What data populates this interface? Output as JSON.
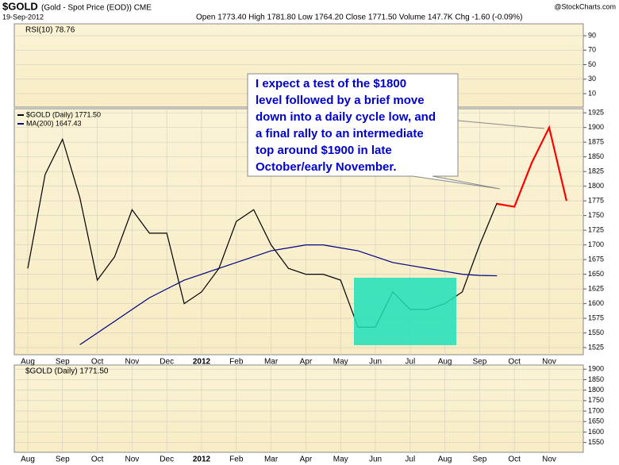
{
  "header": {
    "symbol": "$GOLD",
    "description": "(Gold - Spot Price (EOD)) CME",
    "date": "19-Sep-2012",
    "stats": "Open 1773.40 High 1781.80 Low 1764.20 Close 1771.50 Volume 147.7K Chg -1.60 (-0.09%)",
    "watermark": "@StockCharts.com"
  },
  "chart_data": [
    {
      "type": "line",
      "title": "RSI(10) 78.76",
      "ylim": [
        -8.6,
        106.4
      ],
      "yticks": [
        90,
        70,
        50,
        30,
        10
      ],
      "grid": true
    },
    {
      "type": "line",
      "categories": [
        "Aug",
        null,
        "Sep",
        null,
        "Oct",
        null,
        "Nov",
        null,
        "Dec",
        null,
        "2012",
        null,
        "Feb",
        null,
        "Mar",
        null,
        "Apr",
        null,
        "May",
        null,
        "Jun",
        null,
        "Jul",
        null,
        "Aug",
        null,
        "Sep",
        null,
        "Oct",
        null,
        "Nov",
        null
      ],
      "series": [
        {
          "name": "$GOLD (Daily) 1771.50",
          "color": "#000000",
          "values": [
            1660,
            1820,
            1880,
            1780,
            1640,
            1680,
            1760,
            1720,
            1720,
            1600,
            1620,
            1660,
            1740,
            1760,
            1700,
            1660,
            1650,
            1650,
            1640,
            1560,
            1560,
            1620,
            1590,
            1590,
            1600,
            1620,
            1700,
            1771.5,
            null,
            null,
            null,
            null
          ]
        },
        {
          "name": "MA(200) 1647.43",
          "color": "#000080",
          "values": [
            null,
            null,
            null,
            1530,
            1550,
            1570,
            1590,
            1610,
            1625,
            1640,
            1650,
            1660,
            1670,
            1680,
            1690,
            1695,
            1700,
            1700,
            1695,
            1690,
            1680,
            1670,
            1665,
            1660,
            1655,
            1650,
            1648,
            1647.43,
            null,
            null,
            null,
            null
          ]
        },
        {
          "color": "#ff0000",
          "values": [
            null,
            null,
            null,
            null,
            null,
            null,
            null,
            null,
            null,
            null,
            null,
            null,
            null,
            null,
            null,
            null,
            null,
            null,
            null,
            null,
            null,
            null,
            null,
            null,
            null,
            null,
            null,
            1770,
            1765,
            1840,
            1900,
            1775
          ]
        }
      ],
      "annotation": [
        "I expect a test of the $1800",
        "level followed by a brief move",
        "down into a daily cycle low, and",
        "a final rally to an intermediate",
        "top around $1900 in late",
        "October/early November."
      ],
      "ylim": [
        1513,
        1932
      ],
      "yticks": [
        1925,
        1900,
        1875,
        1850,
        1825,
        1800,
        1775,
        1750,
        1725,
        1700,
        1675,
        1650,
        1625,
        1600,
        1575,
        1550,
        1525
      ],
      "grid": true
    },
    {
      "type": "line",
      "title": "$GOLD (Daily) 1771.50",
      "ylim": [
        1503,
        1920
      ],
      "yticks": [
        1900,
        1850,
        1800,
        1750,
        1700,
        1650,
        1600,
        1550
      ],
      "grid": true
    }
  ]
}
